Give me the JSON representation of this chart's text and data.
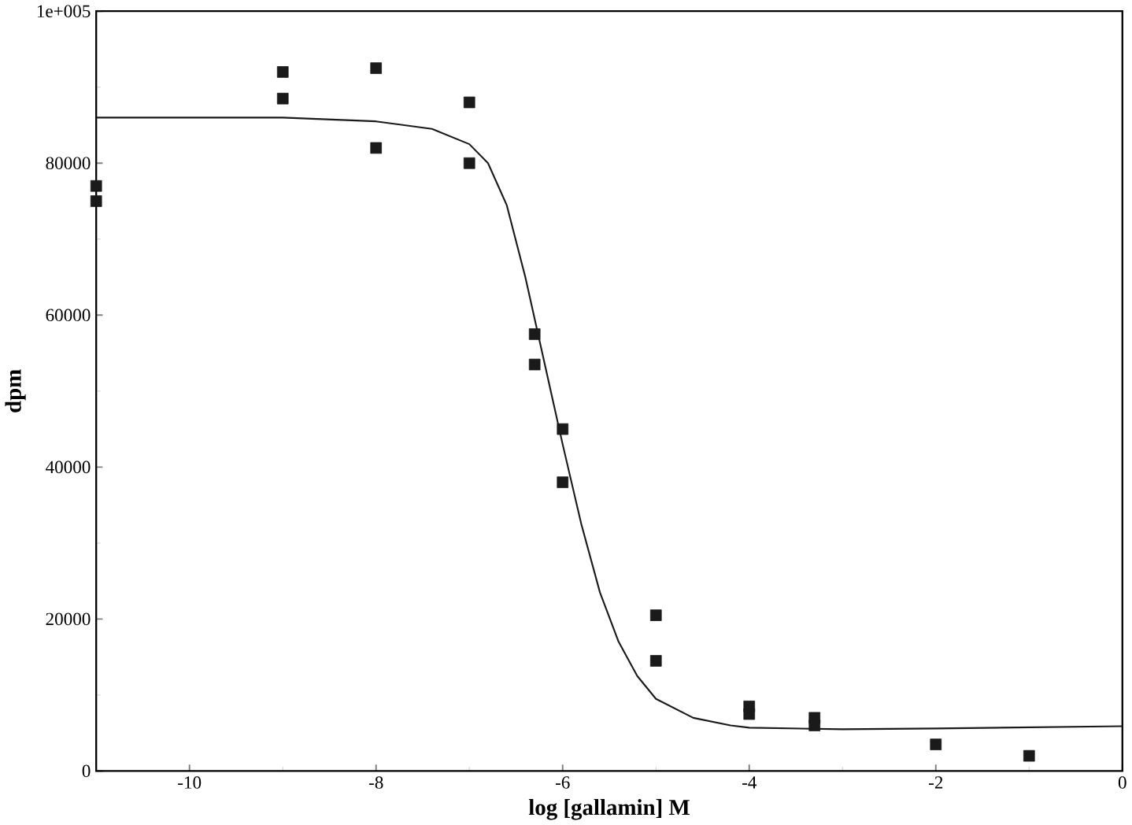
{
  "chart_data": {
    "type": "scatter",
    "xlabel": "log [gallamin] M",
    "ylabel": "dpm",
    "xlim": [
      -11,
      0
    ],
    "ylim": [
      0,
      100000
    ],
    "xticks": [
      -10,
      -8,
      -6,
      -4,
      -2,
      0
    ],
    "yticks": [
      0,
      20000,
      40000,
      60000,
      80000,
      {
        "value": 100000,
        "label": "1e+005"
      }
    ],
    "grid": false,
    "marker": "square",
    "series": [
      {
        "color": "#1a1a1a",
        "x": [
          -11,
          -11,
          -9,
          -9,
          -8,
          -8,
          -7,
          -7,
          -6.3,
          -6.3,
          -6,
          -6,
          -5,
          -5,
          -4,
          -4,
          -3.3,
          -3.3,
          -2,
          -1
        ],
        "values": [
          77000,
          75000,
          92000,
          88500,
          92500,
          82000,
          88000,
          80000,
          57500,
          53500,
          45000,
          38000,
          20500,
          14500,
          8500,
          7500,
          7000,
          6000,
          3500,
          2000
        ]
      },
      {
        "type": "line",
        "color": "#1a1a1a",
        "marker": "none",
        "line_style": "solid",
        "x": [
          -11,
          -9,
          -8,
          -7.4,
          -7,
          -6.8,
          -6.6,
          -6.4,
          -6.2,
          -6,
          -5.8,
          -5.6,
          -5.4,
          -5.2,
          -5,
          -4.6,
          -4.2,
          -4,
          -3,
          -2,
          0
        ],
        "values": [
          86000,
          86000,
          85500,
          84500,
          82500,
          80000,
          74500,
          65000,
          54000,
          43000,
          32500,
          23500,
          17000,
          12500,
          9500,
          7000,
          6000,
          5700,
          5500,
          5600,
          5900
        ]
      }
    ]
  }
}
